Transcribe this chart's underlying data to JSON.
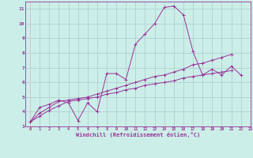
{
  "xlabel": "Windchill (Refroidissement éolien,°C)",
  "bg_color": "#cceee8",
  "grid_color": "#aacccc",
  "line_color": "#993399",
  "x_data": [
    0,
    1,
    2,
    3,
    4,
    5,
    6,
    7,
    8,
    9,
    10,
    11,
    12,
    13,
    14,
    15,
    16,
    17,
    18,
    19,
    20,
    21,
    22,
    23
  ],
  "line1": [
    3.3,
    4.3,
    4.5,
    4.8,
    4.6,
    3.4,
    4.6,
    4.0,
    6.6,
    6.6,
    6.2,
    8.6,
    9.3,
    10.0,
    11.1,
    11.2,
    10.6,
    8.1,
    6.5,
    6.9,
    6.5,
    7.1,
    6.5,
    null
  ],
  "line2": [
    3.3,
    3.9,
    4.3,
    4.7,
    4.8,
    4.9,
    5.0,
    5.2,
    5.4,
    5.6,
    5.8,
    6.0,
    6.2,
    6.4,
    6.5,
    6.7,
    6.9,
    7.2,
    7.3,
    7.5,
    7.7,
    7.9,
    null,
    null
  ],
  "line3": [
    3.3,
    3.7,
    4.1,
    4.4,
    4.7,
    4.8,
    4.9,
    5.0,
    5.2,
    5.3,
    5.5,
    5.6,
    5.8,
    5.9,
    6.0,
    6.1,
    6.3,
    6.4,
    6.5,
    6.6,
    6.7,
    6.8,
    null,
    null
  ],
  "ylim": [
    3,
    11.5
  ],
  "xlim": [
    -0.5,
    23
  ],
  "yticks": [
    3,
    4,
    5,
    6,
    7,
    8,
    9,
    10,
    11
  ],
  "xticks": [
    0,
    1,
    2,
    3,
    4,
    5,
    6,
    7,
    8,
    9,
    10,
    11,
    12,
    13,
    14,
    15,
    16,
    17,
    18,
    19,
    20,
    21,
    22,
    23
  ]
}
